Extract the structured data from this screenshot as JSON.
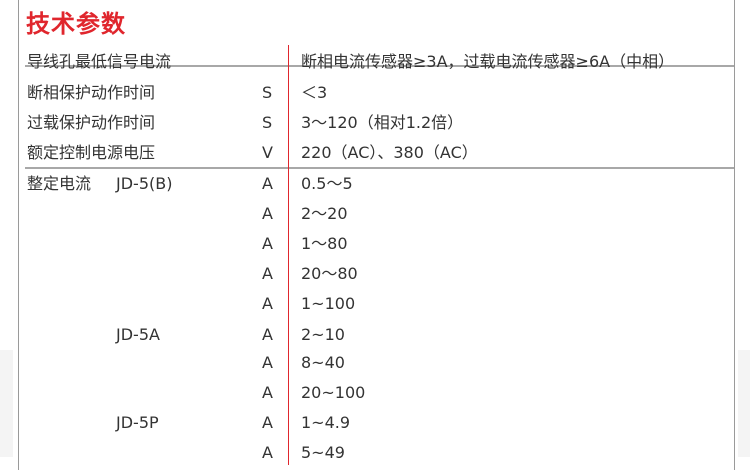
{
  "title": "技术参数",
  "rows": [
    {
      "label": "导线孔最低信号电流",
      "unit": "",
      "value": "断相电流传感器≥3A，过载电流传感器≥6A（中相）"
    },
    {
      "label": "断相保护动作时间",
      "unit": "S",
      "value": "＜3"
    },
    {
      "label": "过载保护动作时间",
      "unit": "S",
      "value": "3～120（相对1.2倍）"
    },
    {
      "label": "额定控制电源电压",
      "unit": "V",
      "value": "220（AC）、380（AC）"
    }
  ],
  "setting_current": {
    "label": "整定电流",
    "rows": [
      {
        "model": "JD-5(B)",
        "unit": "A",
        "value": "0.5～5"
      },
      {
        "model": "",
        "unit": "A",
        "value": "2～20"
      },
      {
        "model": "",
        "unit": "A",
        "value": "1～80"
      },
      {
        "model": "",
        "unit": "A",
        "value": "20～80"
      },
      {
        "model": "",
        "unit": "A",
        "value": "1~100"
      },
      {
        "model": "JD-5A",
        "unit": "A",
        "value": "2~10"
      },
      {
        "model": "",
        "unit": "A",
        "value": "8~40"
      },
      {
        "model": "",
        "unit": "A",
        "value": "20~100"
      },
      {
        "model": "JD-5P",
        "unit": "A",
        "value": "1~4.9"
      },
      {
        "model": "",
        "unit": "A",
        "value": "5~49"
      }
    ]
  },
  "colors": {
    "accent": "#e0262d",
    "rule": "#a8a8a8"
  }
}
